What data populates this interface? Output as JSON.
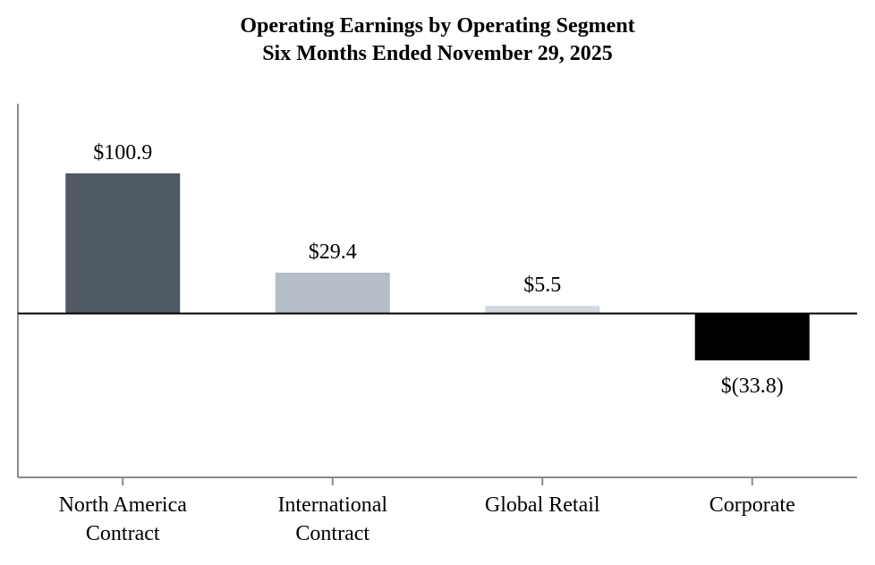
{
  "chart_data": {
    "type": "bar",
    "title": "Operating Earnings by Operating Segment",
    "subtitle": "Six Months Ended November 29, 2025",
    "categories": [
      [
        "North America",
        "Contract"
      ],
      [
        "International",
        "Contract"
      ],
      [
        "Global Retail"
      ],
      [
        "Corporate"
      ]
    ],
    "values": [
      100.9,
      29.4,
      5.5,
      -33.8
    ],
    "value_labels": [
      "$100.9",
      "$29.4",
      "$5.5",
      "$(33.8)"
    ],
    "colors": [
      "#505a64",
      "#b5bec7",
      "#d2d8de",
      "#000000"
    ],
    "axis_color": "#8c8c8c",
    "zero_line_color": "#000000",
    "ylim": [
      -118,
      151
    ],
    "xlabel": "",
    "ylabel": "",
    "grid": false,
    "legend": "none"
  }
}
